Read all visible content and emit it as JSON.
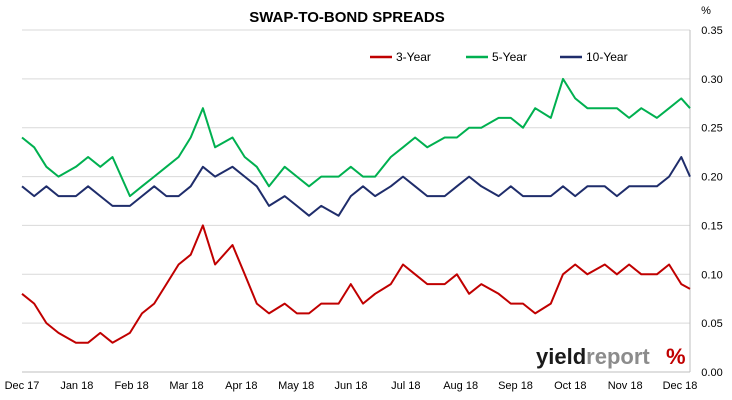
{
  "chart_data": {
    "type": "line",
    "title": "SWAP-TO-BOND SPREADS",
    "ylabel": "%",
    "xlabel": "",
    "ylim": [
      0,
      0.35
    ],
    "yticks": [
      "0.00",
      "0.05",
      "0.10",
      "0.15",
      "0.20",
      "0.25",
      "0.30",
      "0.35"
    ],
    "ytick_values": [
      0,
      0.05,
      0.1,
      0.15,
      0.2,
      0.25,
      0.3,
      0.35
    ],
    "y_axis_side": "right",
    "grid": true,
    "legend_position": "top-right",
    "x_tick_labels": [
      "Dec 17",
      "Jan 18",
      "Feb 18",
      "Mar 18",
      "Apr 18",
      "May 18",
      "Jun 18",
      "Jul 18",
      "Aug 18",
      "Sep 18",
      "Oct 18",
      "Nov 18",
      "Dec 18"
    ],
    "x_start": "2017-12-01",
    "x_end": "2018-12-20",
    "series": [
      {
        "name": "3-Year",
        "color": "#c00000",
        "points": [
          [
            "2017-12-01",
            0.08
          ],
          [
            "2017-12-08",
            0.07
          ],
          [
            "2017-12-15",
            0.05
          ],
          [
            "2017-12-22",
            0.04
          ],
          [
            "2018-01-01",
            0.03
          ],
          [
            "2018-01-08",
            0.03
          ],
          [
            "2018-01-15",
            0.04
          ],
          [
            "2018-01-22",
            0.03
          ],
          [
            "2018-02-01",
            0.04
          ],
          [
            "2018-02-08",
            0.06
          ],
          [
            "2018-02-15",
            0.07
          ],
          [
            "2018-02-22",
            0.09
          ],
          [
            "2018-03-01",
            0.11
          ],
          [
            "2018-03-08",
            0.12
          ],
          [
            "2018-03-15",
            0.15
          ],
          [
            "2018-03-22",
            0.11
          ],
          [
            "2018-04-01",
            0.13
          ],
          [
            "2018-04-08",
            0.1
          ],
          [
            "2018-04-15",
            0.07
          ],
          [
            "2018-04-22",
            0.06
          ],
          [
            "2018-05-01",
            0.07
          ],
          [
            "2018-05-08",
            0.06
          ],
          [
            "2018-05-15",
            0.06
          ],
          [
            "2018-05-22",
            0.07
          ],
          [
            "2018-06-01",
            0.07
          ],
          [
            "2018-06-08",
            0.09
          ],
          [
            "2018-06-15",
            0.07
          ],
          [
            "2018-06-22",
            0.08
          ],
          [
            "2018-07-01",
            0.09
          ],
          [
            "2018-07-08",
            0.11
          ],
          [
            "2018-07-15",
            0.1
          ],
          [
            "2018-07-22",
            0.09
          ],
          [
            "2018-08-01",
            0.09
          ],
          [
            "2018-08-08",
            0.1
          ],
          [
            "2018-08-15",
            0.08
          ],
          [
            "2018-08-22",
            0.09
          ],
          [
            "2018-09-01",
            0.08
          ],
          [
            "2018-09-08",
            0.07
          ],
          [
            "2018-09-15",
            0.07
          ],
          [
            "2018-09-22",
            0.06
          ],
          [
            "2018-10-01",
            0.07
          ],
          [
            "2018-10-08",
            0.1
          ],
          [
            "2018-10-15",
            0.11
          ],
          [
            "2018-10-22",
            0.1
          ],
          [
            "2018-11-01",
            0.11
          ],
          [
            "2018-11-08",
            0.1
          ],
          [
            "2018-11-15",
            0.11
          ],
          [
            "2018-11-22",
            0.1
          ],
          [
            "2018-12-01",
            0.1
          ],
          [
            "2018-12-08",
            0.11
          ],
          [
            "2018-12-15",
            0.09
          ],
          [
            "2018-12-20",
            0.085
          ]
        ]
      },
      {
        "name": "5-Year",
        "color": "#00b050",
        "points": [
          [
            "2017-12-01",
            0.24
          ],
          [
            "2017-12-08",
            0.23
          ],
          [
            "2017-12-15",
            0.21
          ],
          [
            "2017-12-22",
            0.2
          ],
          [
            "2018-01-01",
            0.21
          ],
          [
            "2018-01-08",
            0.22
          ],
          [
            "2018-01-15",
            0.21
          ],
          [
            "2018-01-22",
            0.22
          ],
          [
            "2018-02-01",
            0.18
          ],
          [
            "2018-02-08",
            0.19
          ],
          [
            "2018-02-15",
            0.2
          ],
          [
            "2018-02-22",
            0.21
          ],
          [
            "2018-03-01",
            0.22
          ],
          [
            "2018-03-08",
            0.24
          ],
          [
            "2018-03-15",
            0.27
          ],
          [
            "2018-03-22",
            0.23
          ],
          [
            "2018-04-01",
            0.24
          ],
          [
            "2018-04-08",
            0.22
          ],
          [
            "2018-04-15",
            0.21
          ],
          [
            "2018-04-22",
            0.19
          ],
          [
            "2018-05-01",
            0.21
          ],
          [
            "2018-05-08",
            0.2
          ],
          [
            "2018-05-15",
            0.19
          ],
          [
            "2018-05-22",
            0.2
          ],
          [
            "2018-06-01",
            0.2
          ],
          [
            "2018-06-08",
            0.21
          ],
          [
            "2018-06-15",
            0.2
          ],
          [
            "2018-06-22",
            0.2
          ],
          [
            "2018-07-01",
            0.22
          ],
          [
            "2018-07-08",
            0.23
          ],
          [
            "2018-07-15",
            0.24
          ],
          [
            "2018-07-22",
            0.23
          ],
          [
            "2018-08-01",
            0.24
          ],
          [
            "2018-08-08",
            0.24
          ],
          [
            "2018-08-15",
            0.25
          ],
          [
            "2018-08-22",
            0.25
          ],
          [
            "2018-09-01",
            0.26
          ],
          [
            "2018-09-08",
            0.26
          ],
          [
            "2018-09-15",
            0.25
          ],
          [
            "2018-09-22",
            0.27
          ],
          [
            "2018-10-01",
            0.26
          ],
          [
            "2018-10-08",
            0.3
          ],
          [
            "2018-10-15",
            0.28
          ],
          [
            "2018-10-22",
            0.27
          ],
          [
            "2018-11-01",
            0.27
          ],
          [
            "2018-11-08",
            0.27
          ],
          [
            "2018-11-15",
            0.26
          ],
          [
            "2018-11-22",
            0.27
          ],
          [
            "2018-12-01",
            0.26
          ],
          [
            "2018-12-08",
            0.27
          ],
          [
            "2018-12-15",
            0.28
          ],
          [
            "2018-12-20",
            0.27
          ]
        ]
      },
      {
        "name": "10-Year",
        "color": "#1f2d6b",
        "points": [
          [
            "2017-12-01",
            0.19
          ],
          [
            "2017-12-08",
            0.18
          ],
          [
            "2017-12-15",
            0.19
          ],
          [
            "2017-12-22",
            0.18
          ],
          [
            "2018-01-01",
            0.18
          ],
          [
            "2018-01-08",
            0.19
          ],
          [
            "2018-01-15",
            0.18
          ],
          [
            "2018-01-22",
            0.17
          ],
          [
            "2018-02-01",
            0.17
          ],
          [
            "2018-02-08",
            0.18
          ],
          [
            "2018-02-15",
            0.19
          ],
          [
            "2018-02-22",
            0.18
          ],
          [
            "2018-03-01",
            0.18
          ],
          [
            "2018-03-08",
            0.19
          ],
          [
            "2018-03-15",
            0.21
          ],
          [
            "2018-03-22",
            0.2
          ],
          [
            "2018-04-01",
            0.21
          ],
          [
            "2018-04-08",
            0.2
          ],
          [
            "2018-04-15",
            0.19
          ],
          [
            "2018-04-22",
            0.17
          ],
          [
            "2018-05-01",
            0.18
          ],
          [
            "2018-05-08",
            0.17
          ],
          [
            "2018-05-15",
            0.16
          ],
          [
            "2018-05-22",
            0.17
          ],
          [
            "2018-06-01",
            0.16
          ],
          [
            "2018-06-08",
            0.18
          ],
          [
            "2018-06-15",
            0.19
          ],
          [
            "2018-06-22",
            0.18
          ],
          [
            "2018-07-01",
            0.19
          ],
          [
            "2018-07-08",
            0.2
          ],
          [
            "2018-07-15",
            0.19
          ],
          [
            "2018-07-22",
            0.18
          ],
          [
            "2018-08-01",
            0.18
          ],
          [
            "2018-08-08",
            0.19
          ],
          [
            "2018-08-15",
            0.2
          ],
          [
            "2018-08-22",
            0.19
          ],
          [
            "2018-09-01",
            0.18
          ],
          [
            "2018-09-08",
            0.19
          ],
          [
            "2018-09-15",
            0.18
          ],
          [
            "2018-09-22",
            0.18
          ],
          [
            "2018-10-01",
            0.18
          ],
          [
            "2018-10-08",
            0.19
          ],
          [
            "2018-10-15",
            0.18
          ],
          [
            "2018-10-22",
            0.19
          ],
          [
            "2018-11-01",
            0.19
          ],
          [
            "2018-11-08",
            0.18
          ],
          [
            "2018-11-15",
            0.19
          ],
          [
            "2018-11-22",
            0.19
          ],
          [
            "2018-12-01",
            0.19
          ],
          [
            "2018-12-08",
            0.2
          ],
          [
            "2018-12-15",
            0.22
          ],
          [
            "2018-12-20",
            0.2
          ]
        ]
      }
    ]
  },
  "logo": {
    "word_light": "yield",
    "word_dark": "report",
    "symbol": "%",
    "colors": {
      "light": "#1a1a1a",
      "dark": "#8c8c8c",
      "symbol_top": "#00b050",
      "symbol_bottom": "#c00000"
    }
  }
}
